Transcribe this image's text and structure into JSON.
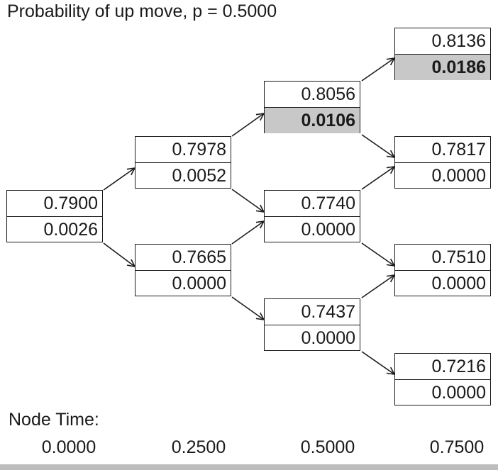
{
  "title": "Probability of up move, p = 0.5000",
  "nodes": {
    "n0_0": {
      "top": "0.7900",
      "bottom": "0.0026",
      "highlight": false
    },
    "n1_1": {
      "top": "0.7978",
      "bottom": "0.0052",
      "highlight": false
    },
    "n1_0": {
      "top": "0.7665",
      "bottom": "0.0000",
      "highlight": false
    },
    "n2_2": {
      "top": "0.8056",
      "bottom": "0.0106",
      "highlight": true
    },
    "n2_1": {
      "top": "0.7740",
      "bottom": "0.0000",
      "highlight": false
    },
    "n2_0": {
      "top": "0.7437",
      "bottom": "0.0000",
      "highlight": false
    },
    "n3_3": {
      "top": "0.8136",
      "bottom": "0.0186",
      "highlight": true
    },
    "n3_2": {
      "top": "0.7817",
      "bottom": "0.0000",
      "highlight": false
    },
    "n3_1": {
      "top": "0.7510",
      "bottom": "0.0000",
      "highlight": false
    },
    "n3_0": {
      "top": "0.7216",
      "bottom": "0.0000",
      "highlight": false
    }
  },
  "node_time": {
    "label": "Node Time:",
    "values": [
      "0.0000",
      "0.2500",
      "0.5000",
      "0.7500"
    ]
  },
  "colors": {
    "highlight": "#c8c8c8",
    "line": "#1a1a1a",
    "bottom_bar": "#bdbdbd"
  }
}
